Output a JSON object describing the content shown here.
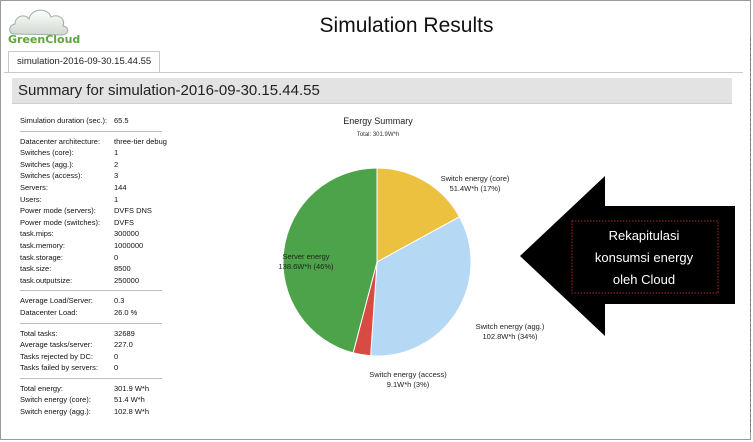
{
  "app": {
    "logo_text": "GreenCloud",
    "title": "Simulation Results"
  },
  "tab": {
    "label": "simulation-2016-09-30.15.44.55"
  },
  "summary": {
    "title": "Summary for simulation-2016-09-30.15.44.55"
  },
  "info_groups": [
    [
      {
        "label": "Simulation duration (sec.):",
        "value": "65.5"
      }
    ],
    [
      {
        "label": "Datacenter architecture:",
        "value": "three-tier debug"
      },
      {
        "label": "Switches (core):",
        "value": "1"
      },
      {
        "label": "Switches (agg.):",
        "value": "2"
      },
      {
        "label": "Switches (access):",
        "value": "3"
      },
      {
        "label": "Servers:",
        "value": "144"
      },
      {
        "label": "Users:",
        "value": "1"
      },
      {
        "label": "Power mode (servers):",
        "value": "DVFS DNS"
      },
      {
        "label": "Power mode (switches):",
        "value": "DVFS"
      },
      {
        "label": "task.mips:",
        "value": "300000"
      },
      {
        "label": "task.memory:",
        "value": "1000000"
      },
      {
        "label": "task.storage:",
        "value": "0"
      },
      {
        "label": "task.size:",
        "value": "8500"
      },
      {
        "label": "task.outputsize:",
        "value": "250000"
      }
    ],
    [
      {
        "label": "Average Load/Server:",
        "value": "0.3"
      },
      {
        "label": "Datacenter Load:",
        "value": "26.0 %"
      }
    ],
    [
      {
        "label": "Total tasks:",
        "value": "32689"
      },
      {
        "label": "Average tasks/server:",
        "value": "227.0"
      },
      {
        "label": "Tasks rejected by DC:",
        "value": "0"
      },
      {
        "label": "Tasks failed by servers:",
        "value": "0"
      }
    ],
    [
      {
        "label": "Total energy:",
        "value": "301.9 W*h"
      },
      {
        "label": "Switch energy (core):",
        "value": "51.4 W*h"
      },
      {
        "label": "Switch energy (agg.):",
        "value": "102.8 W*h"
      }
    ]
  ],
  "chart_data": {
    "type": "pie",
    "title": "Energy Summary",
    "subtitle": "Total: 301.9W*h",
    "slices": [
      {
        "name": "Switch energy (core)",
        "value": 51.4,
        "value_label": "51.4W*h (17%)",
        "color": "#ecc13f"
      },
      {
        "name": "Switch energy (agg.)",
        "value": 102.8,
        "value_label": "102.8W*h (34%)",
        "color": "#b5d8f5"
      },
      {
        "name": "Switch energy (access)",
        "value": 9.1,
        "value_label": "9.1W*h (3%)",
        "color": "#d84b43"
      },
      {
        "name": "Server energy",
        "value": 138.6,
        "value_label": "138.6W*h (46%)",
        "color": "#4ca349"
      }
    ]
  },
  "callout": {
    "lines": [
      "Rekapitulasi",
      "konsumsi energy",
      "oleh Cloud"
    ]
  }
}
